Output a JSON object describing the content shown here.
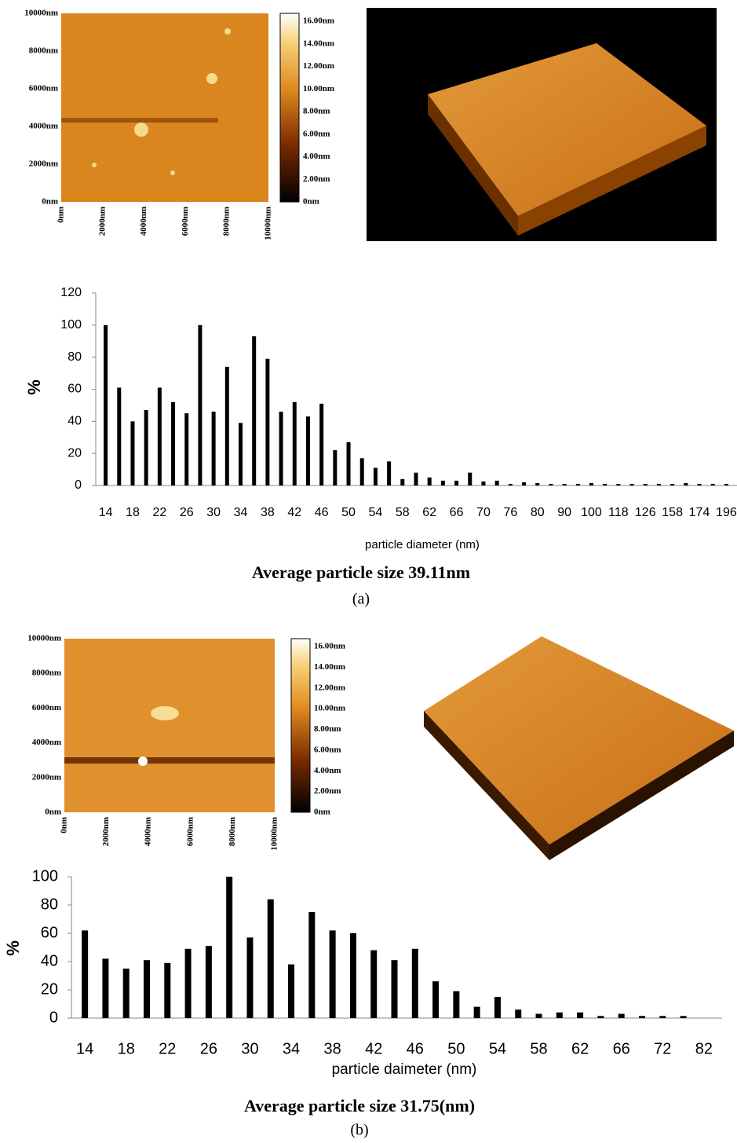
{
  "afm_panels": [
    {
      "map": {
        "y_ticks": [
          "10000nm",
          "8000nm",
          "6000nm",
          "4000nm",
          "2000nm",
          "0nm"
        ],
        "x_ticks": [
          "0nm",
          "2000nm",
          "4000nm",
          "6000nm",
          "8000nm",
          "10000nm"
        ]
      },
      "colorbar": [
        "16.00nm",
        "14.00nm",
        "12.00nm",
        "10.00nm",
        "8.00nm",
        "6.00nm",
        "4.00nm",
        "2.00nm",
        "0nm"
      ]
    },
    {
      "map": {
        "y_ticks": [
          "10000nm",
          "8000nm",
          "6000nm",
          "4000nm",
          "2000nm",
          "0nm"
        ],
        "x_ticks": [
          "0nm",
          "2000nm",
          "4000nm",
          "6000nm",
          "8000nm",
          "10000nm"
        ]
      },
      "colorbar": [
        "16.00nm",
        "14.00nm",
        "12.00nm",
        "10.00nm",
        "8.00nm",
        "6.00nm",
        "4.00nm",
        "2.00nm",
        "0nm"
      ]
    }
  ],
  "chart_data": [
    {
      "type": "bar",
      "x_label": "particle diameter (nm)",
      "y_label": "%",
      "caption": "Average particle size 39.11nm",
      "panel_label": "(a)",
      "color": "#000000",
      "categories": [
        "14",
        null,
        "18",
        null,
        "22",
        null,
        "26",
        null,
        "30",
        null,
        "34",
        null,
        "38",
        null,
        "42",
        null,
        "46",
        null,
        "50",
        null,
        "54",
        null,
        "58",
        null,
        "62",
        null,
        "66",
        null,
        "70",
        null,
        "76",
        null,
        "80",
        null,
        "90",
        null,
        "100",
        null,
        "118",
        null,
        "126",
        null,
        "158",
        null,
        "174",
        null,
        "196"
      ],
      "values": [
        100,
        61,
        40,
        47,
        61,
        52,
        45,
        100,
        46,
        74,
        39,
        93,
        79,
        46,
        52,
        43,
        51,
        22,
        27,
        17,
        11,
        15,
        4,
        8,
        5,
        3,
        3,
        8,
        2.5,
        3,
        1,
        2,
        1.5,
        1,
        1,
        1,
        1.5,
        1,
        1,
        1,
        1,
        1,
        1,
        1.5,
        1,
        1,
        1
      ],
      "ylim": [
        0,
        120
      ],
      "yticks": [
        0,
        20,
        40,
        60,
        80,
        100,
        120
      ]
    },
    {
      "type": "bar",
      "x_label": "particle daimeter (nm)",
      "y_label": "%",
      "caption": "Average particle size 31.75(nm)",
      "panel_label": "(b)",
      "color": "#000000",
      "categories": [
        "14",
        null,
        "18",
        null,
        "22",
        null,
        "26",
        null,
        "30",
        null,
        "34",
        null,
        "38",
        null,
        "42",
        null,
        "46",
        null,
        "50",
        null,
        "54",
        null,
        "58",
        null,
        "62",
        null,
        "66",
        null,
        "72",
        null,
        "82"
      ],
      "values": [
        62,
        42,
        35,
        41,
        39,
        49,
        51,
        100,
        57,
        84,
        38,
        75,
        62,
        60,
        48,
        41,
        49,
        26,
        19,
        8,
        15,
        6,
        3,
        4,
        4,
        1.5,
        3,
        1.5,
        1.5,
        1.5,
        0
      ],
      "ylim": [
        0,
        100
      ],
      "yticks": [
        0,
        20,
        40,
        60,
        80,
        100
      ]
    }
  ]
}
